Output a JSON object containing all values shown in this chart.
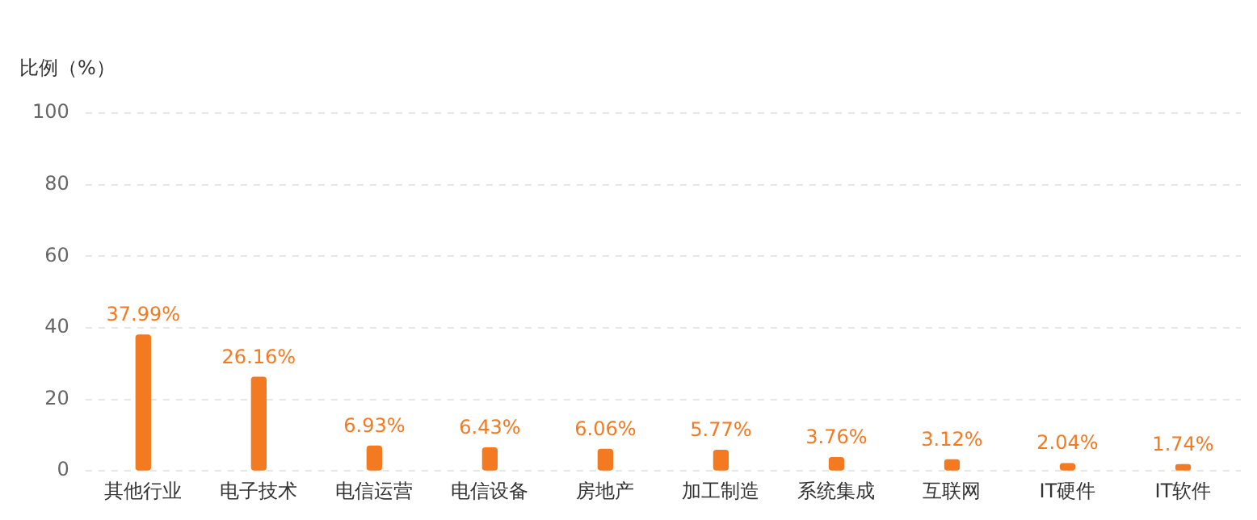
{
  "chart_data": {
    "type": "bar",
    "ylabel": "比例（%）",
    "categories": [
      "其他行业",
      "电子技术",
      "电信运营",
      "电信设备",
      "房地产",
      "加工制造",
      "系统集成",
      "互联网",
      "IT硬件",
      "IT软件"
    ],
    "values": [
      37.99,
      26.16,
      6.93,
      6.43,
      6.06,
      5.77,
      3.76,
      3.12,
      2.04,
      1.74
    ],
    "value_labels": [
      "37.99%",
      "26.16%",
      "6.93%",
      "6.43%",
      "6.06%",
      "5.77%",
      "3.76%",
      "3.12%",
      "2.04%",
      "1.74%"
    ],
    "color": "#f47a22",
    "ylim": [
      0,
      100
    ],
    "yticks": [
      0,
      20,
      40,
      60,
      80,
      100
    ],
    "grid": "y",
    "legend": false
  }
}
